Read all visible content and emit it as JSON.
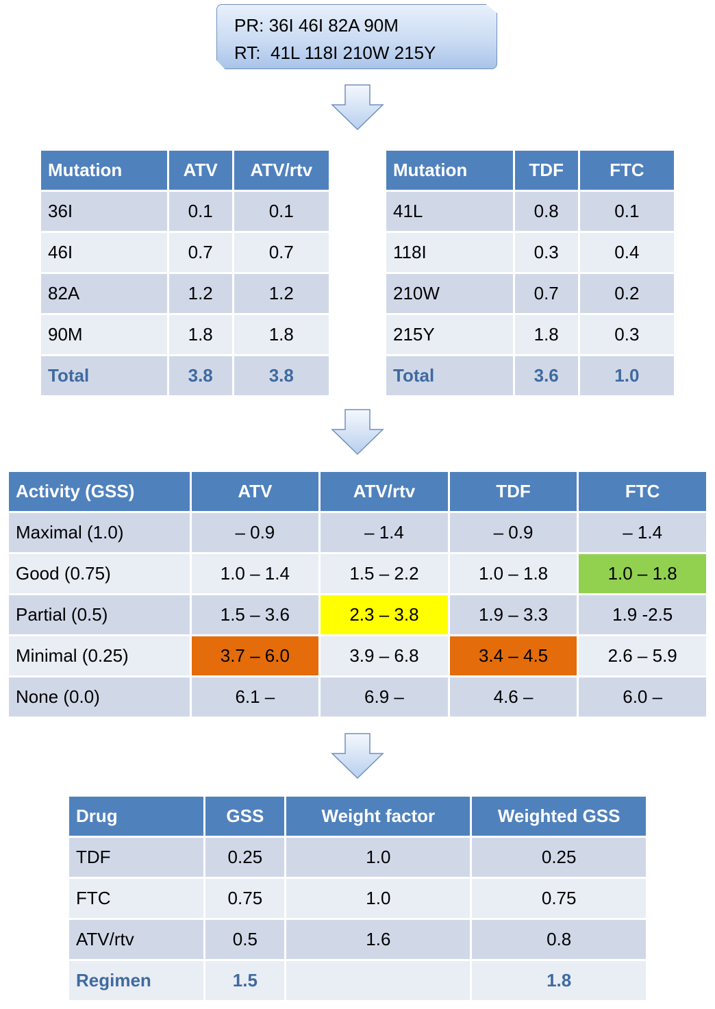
{
  "mutations_box": {
    "pr_line": "PR: 36I 46I 82A 90M",
    "rt_line": "RT:  41L 118I 210W 215Y"
  },
  "pr_table": {
    "headers": [
      "Mutation",
      "ATV",
      "ATV/rtv"
    ],
    "rows": [
      [
        "36I",
        "0.1",
        "0.1"
      ],
      [
        "46I",
        "0.7",
        "0.7"
      ],
      [
        "82A",
        "1.2",
        "1.2"
      ],
      [
        "90M",
        "1.8",
        "1.8"
      ]
    ],
    "total": [
      "Total",
      "3.8",
      "3.8"
    ]
  },
  "rt_table": {
    "headers": [
      "Mutation",
      "TDF",
      "FTC"
    ],
    "rows": [
      [
        "41L",
        "0.8",
        "0.1"
      ],
      [
        "118I",
        "0.3",
        "0.4"
      ],
      [
        "210W",
        "0.7",
        "0.2"
      ],
      [
        "215Y",
        "1.8",
        "0.3"
      ]
    ],
    "total": [
      "Total",
      "3.6",
      "1.0"
    ]
  },
  "activity_table": {
    "headers": [
      "Activity (GSS)",
      "ATV",
      "ATV/rtv",
      "TDF",
      "FTC"
    ],
    "rows": [
      [
        "Maximal (1.0)",
        "– 0.9",
        "– 1.4",
        "– 0.9",
        "– 1.4"
      ],
      [
        "Good (0.75)",
        "1.0 – 1.4",
        "1.5 – 2.2",
        "1.0 – 1.8",
        "1.0 – 1.8"
      ],
      [
        "Partial (0.5)",
        "1.5 – 3.6",
        "2.3 – 3.8",
        "1.9 – 3.3",
        "1.9 -2.5"
      ],
      [
        "Minimal (0.25)",
        "3.7 – 6.0",
        "3.9 – 6.8",
        "3.4 – 4.5",
        "2.6 – 5.9"
      ],
      [
        "None (0.0)",
        "6.1 –",
        "6.9 –",
        "4.6 –",
        "6.0 –"
      ]
    ],
    "highlights": [
      {
        "row": 1,
        "col": 4,
        "color": "#92d050"
      },
      {
        "row": 2,
        "col": 2,
        "color": "#ffff00"
      },
      {
        "row": 3,
        "col": 1,
        "color": "#e46c0a"
      },
      {
        "row": 3,
        "col": 3,
        "color": "#e46c0a"
      }
    ]
  },
  "regimen_table": {
    "headers": [
      "Drug",
      "GSS",
      "Weight factor",
      "Weighted GSS"
    ],
    "rows": [
      [
        "TDF",
        "0.25",
        "1.0",
        "0.25"
      ],
      [
        "FTC",
        "0.75",
        "1.0",
        "0.75"
      ],
      [
        "ATV/rtv",
        "0.5",
        "1.6",
        "0.8"
      ]
    ],
    "total": [
      "Regimen",
      "1.5",
      "",
      "1.8"
    ]
  },
  "colors": {
    "header_blue": "#4f81bd",
    "row_dark": "#d0d8e8",
    "row_light": "#e9edf4",
    "total_text": "#3f6aa0"
  }
}
